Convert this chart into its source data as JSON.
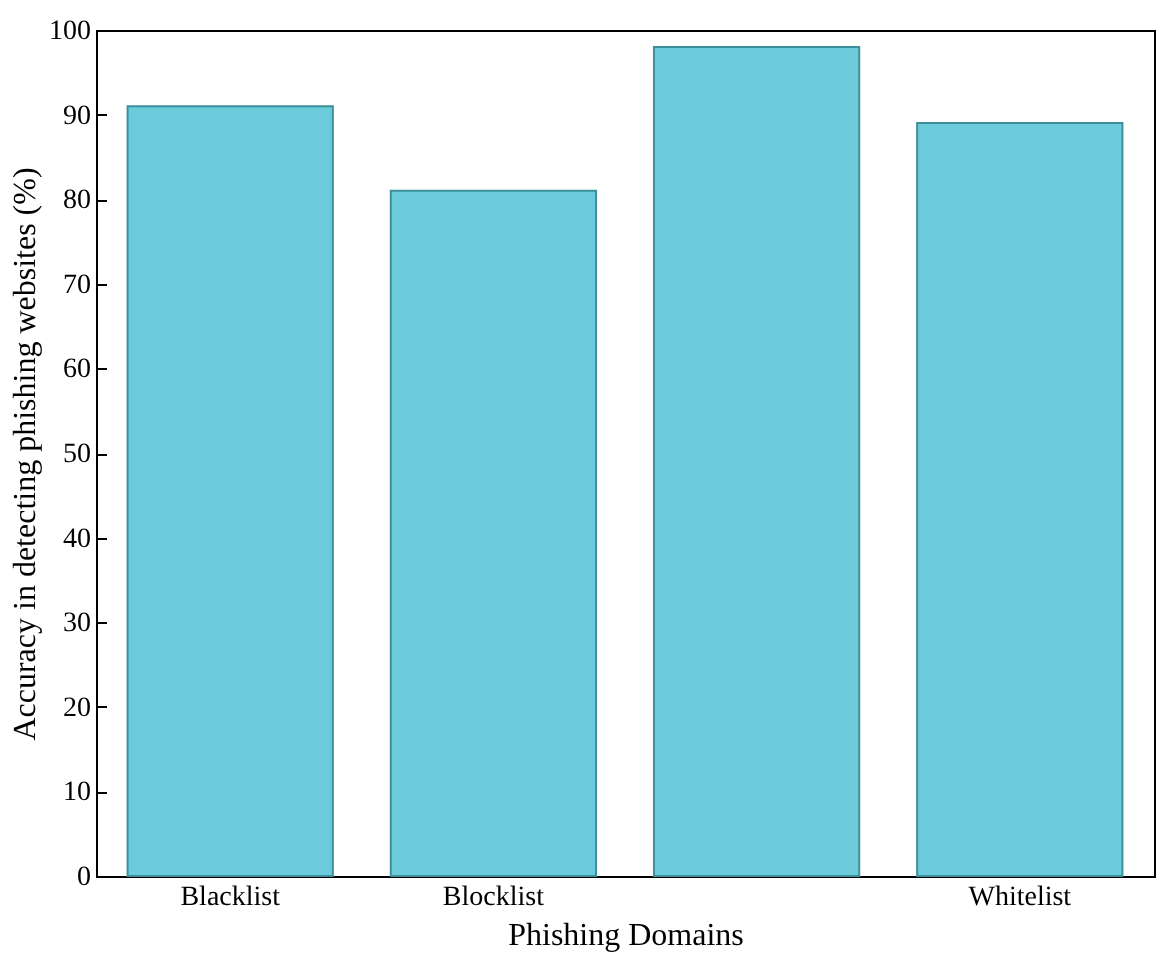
{
  "chart_data": {
    "type": "bar",
    "xlabel": "Phishing Domains",
    "ylabel": "Accuracy in detecting phishing websites (%)",
    "categories": [
      "Blacklist",
      "Blocklist",
      null,
      "Whitelist"
    ],
    "values": [
      91,
      81,
      98,
      89
    ],
    "color": "#6ccbdb",
    "ylim": [
      0,
      100
    ],
    "yticks": [
      0,
      10,
      20,
      30,
      40,
      50,
      60,
      70,
      80,
      90,
      100
    ],
    "grid": false
  }
}
